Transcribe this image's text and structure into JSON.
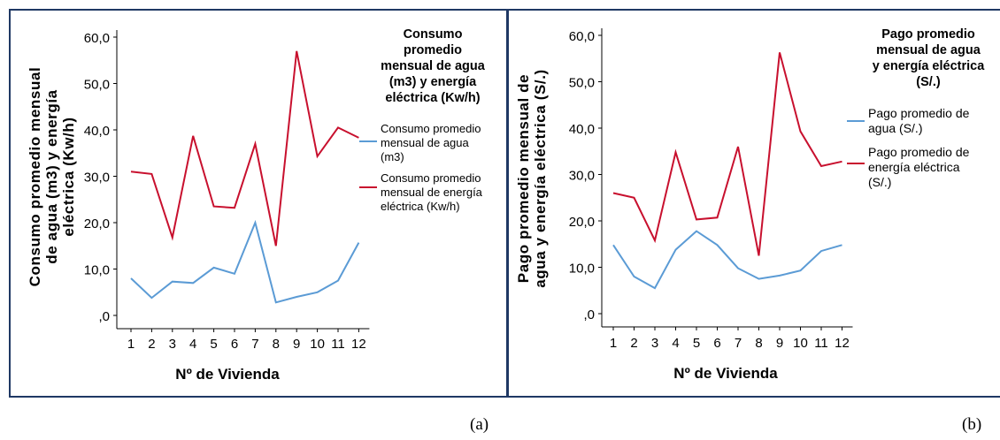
{
  "chart_data": [
    {
      "type": "line",
      "caption": "(a)",
      "xlabel": "Nº de Vivienda",
      "ylabel": "Consumo promedio mensual de agua (m3) y energía eléctrica (Kw/h)",
      "ylabel_lines": [
        "Consumo promedio mensual",
        "de agua (m3) y energía",
        "eléctrica (Kw/h)"
      ],
      "legend_title_lines": [
        "Consumo",
        "promedio",
        "mensual de agua",
        "(m3) y energía",
        "eléctrica (Kw/h)"
      ],
      "categories": [
        "1",
        "2",
        "3",
        "4",
        "5",
        "6",
        "7",
        "8",
        "9",
        "10",
        "11",
        "12"
      ],
      "ylim": [
        0,
        60
      ],
      "yticks": [
        ",0",
        "10,0",
        "20,0",
        "30,0",
        "40,0",
        "50,0",
        "60,0"
      ],
      "grid": false,
      "legend_position": "right",
      "series": [
        {
          "name_lines": [
            "Consumo promedio",
            "mensual de agua",
            "(m3)"
          ],
          "color": "#5b9bd5",
          "values": [
            8.0,
            3.8,
            7.3,
            7.0,
            10.3,
            9.0,
            20.0,
            2.8,
            4.0,
            5.0,
            7.5,
            15.7
          ]
        },
        {
          "name_lines": [
            "Consumo promedio",
            "mensual de energía",
            "eléctrica (Kw/h)"
          ],
          "color": "#c8102e",
          "values": [
            31.0,
            30.5,
            16.8,
            38.7,
            23.5,
            23.2,
            37.0,
            15.0,
            57.0,
            34.3,
            40.5,
            38.3
          ]
        }
      ]
    },
    {
      "type": "line",
      "caption": "(b)",
      "xlabel": "Nº de Vivienda",
      "ylabel": "Pago promedio mensual de agua y energía eléctrica (S/.)",
      "ylabel_lines": [
        "Pago promedio mensual de",
        "agua y energía eléctrica (S/.)"
      ],
      "legend_title_lines": [
        "Pago promedio",
        "mensual de agua",
        "y energía eléctrica",
        "(S/.)"
      ],
      "categories": [
        "1",
        "2",
        "3",
        "4",
        "5",
        "6",
        "7",
        "8",
        "9",
        "10",
        "11",
        "12"
      ],
      "ylim": [
        0,
        60
      ],
      "yticks": [
        ",0",
        "10,0",
        "20,0",
        "30,0",
        "40,0",
        "50,0",
        "60,0"
      ],
      "grid": false,
      "legend_position": "right",
      "series": [
        {
          "name_lines": [
            "Pago promedio de",
            "agua (S/.)"
          ],
          "color": "#5b9bd5",
          "values": [
            14.8,
            8.0,
            5.5,
            13.8,
            17.8,
            14.8,
            9.8,
            7.5,
            8.2,
            9.3,
            13.5,
            14.8
          ]
        },
        {
          "name_lines": [
            "Pago promedio de",
            "energía eléctrica",
            "(S/.)"
          ],
          "color": "#c8102e",
          "values": [
            26.0,
            25.0,
            15.8,
            34.8,
            20.3,
            20.7,
            36.0,
            12.5,
            56.3,
            39.3,
            31.8,
            32.8
          ]
        }
      ]
    }
  ]
}
